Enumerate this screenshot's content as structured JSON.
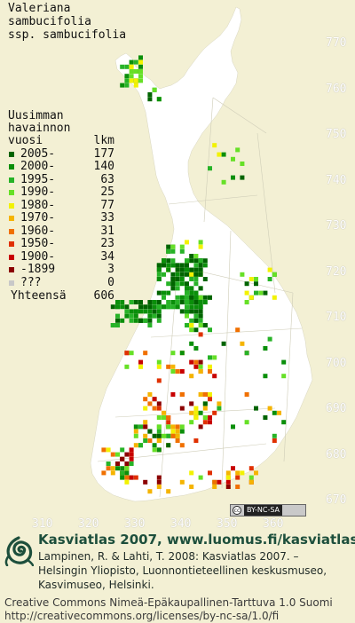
{
  "species": {
    "line1": "Valeriana",
    "line2": "sambucifolia",
    "line3": "ssp. sambucifolia"
  },
  "legend": {
    "header_line1": "Uusimman",
    "header_line2": "havainnon",
    "header_col_year": "vuosi",
    "header_col_count": "lkm",
    "items": [
      {
        "period": "2005-",
        "count": "177",
        "color": "#006400"
      },
      {
        "period": "2000-",
        "count": "140",
        "color": "#0a8f0a"
      },
      {
        "period": "1995-",
        "count": "63",
        "color": "#27b327"
      },
      {
        "period": "1990-",
        "count": "25",
        "color": "#66e026"
      },
      {
        "period": "1980-",
        "count": "77",
        "color": "#f2f200"
      },
      {
        "period": "1970-",
        "count": "33",
        "color": "#f5b400"
      },
      {
        "period": "1960-",
        "count": "31",
        "color": "#f07000"
      },
      {
        "period": "1950-",
        "count": "23",
        "color": "#e03000"
      },
      {
        "period": "1900-",
        "count": "34",
        "color": "#c80000"
      },
      {
        "period": "-1899",
        "count": "3",
        "color": "#8b0000"
      },
      {
        "period": "???",
        "count": "0",
        "color": "#c8c8c8"
      }
    ],
    "total_label": "Yhteensä",
    "total_count": "606"
  },
  "map": {
    "land_color": "#ffffff",
    "background_color": "#f3f0d4",
    "y_ticks": [
      "770",
      "760",
      "750",
      "740",
      "730",
      "720",
      "710",
      "700",
      "690",
      "680",
      "670"
    ],
    "x_ticks": [
      "310",
      "320",
      "330",
      "340",
      "350",
      "360"
    ]
  },
  "license_badge": {
    "symbol": "cc",
    "text": "BY-NC-SA"
  },
  "footer": {
    "title": "Kasviatlas 2007, www.luomus.fi/kasviatlas",
    "citation_line1": "Lampinen, R. & Lahti, T. 2008: Kasviatlas 2007. –",
    "citation_line2": "Helsingin Yliopisto, Luonnontieteellinen keskusmuseo,",
    "citation_line3": "Kasvimuseo, Helsinki.",
    "license_line1": "Creative Commons Nimeä-Epäkaupallinen-Tarttuva 1.0 Suomi",
    "license_line2": "http://creativecommons.org/licenses/by-nc-sa/1.0/fi",
    "logo_icon": "spiral-leaf-logo",
    "brand_color": "#1d4f3c"
  }
}
